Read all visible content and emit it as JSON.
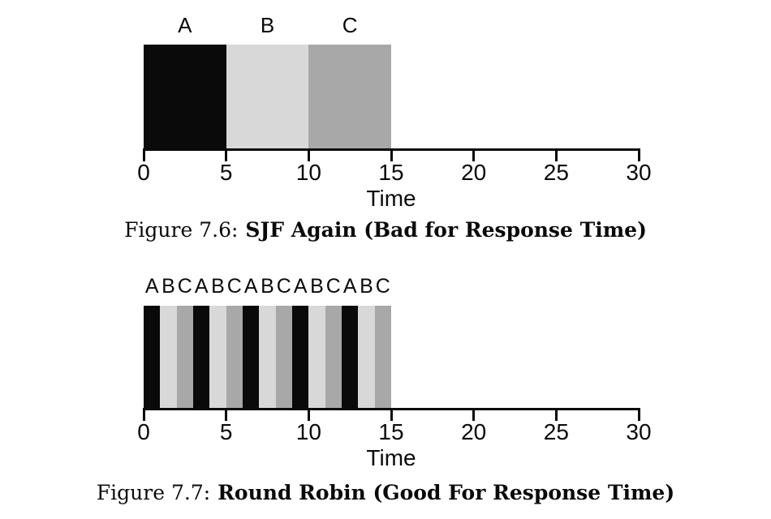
{
  "page": {
    "background": "#ffffff"
  },
  "job_colors": {
    "A": "#0a0a0a",
    "B": "#d8d8d8",
    "C": "#a8a8a8"
  },
  "axis_color": "#0a0a0a",
  "figures": [
    {
      "id": "figure-7-6",
      "job_labels": [
        {
          "text": "A",
          "center_time": 2.5
        },
        {
          "text": "B",
          "center_time": 7.5
        },
        {
          "text": "C",
          "center_time": 12.5
        }
      ],
      "segments": [
        {
          "job": "A",
          "start": 0,
          "end": 5
        },
        {
          "job": "B",
          "start": 5,
          "end": 10
        },
        {
          "job": "C",
          "start": 10,
          "end": 15
        }
      ],
      "axis": {
        "min": 0,
        "max": 30,
        "ticks": [
          0,
          5,
          10,
          15,
          20,
          25,
          30
        ],
        "label": "Time"
      },
      "caption": {
        "prefix": "Figure 7.6:",
        "title": "SJF Again (Bad for Response Time)"
      }
    },
    {
      "id": "figure-7-7",
      "job_labels": [
        {
          "text": "A",
          "center_time": 0.5
        },
        {
          "text": "B",
          "center_time": 1.5
        },
        {
          "text": "C",
          "center_time": 2.5
        },
        {
          "text": "A",
          "center_time": 3.5
        },
        {
          "text": "B",
          "center_time": 4.5
        },
        {
          "text": "C",
          "center_time": 5.5
        },
        {
          "text": "A",
          "center_time": 6.5
        },
        {
          "text": "B",
          "center_time": 7.5
        },
        {
          "text": "C",
          "center_time": 8.5
        },
        {
          "text": "A",
          "center_time": 9.5
        },
        {
          "text": "B",
          "center_time": 10.5
        },
        {
          "text": "C",
          "center_time": 11.5
        },
        {
          "text": "A",
          "center_time": 12.5
        },
        {
          "text": "B",
          "center_time": 13.5
        },
        {
          "text": "C",
          "center_time": 14.5
        }
      ],
      "segments": [
        {
          "job": "A",
          "start": 0,
          "end": 1
        },
        {
          "job": "B",
          "start": 1,
          "end": 2
        },
        {
          "job": "C",
          "start": 2,
          "end": 3
        },
        {
          "job": "A",
          "start": 3,
          "end": 4
        },
        {
          "job": "B",
          "start": 4,
          "end": 5
        },
        {
          "job": "C",
          "start": 5,
          "end": 6
        },
        {
          "job": "A",
          "start": 6,
          "end": 7
        },
        {
          "job": "B",
          "start": 7,
          "end": 8
        },
        {
          "job": "C",
          "start": 8,
          "end": 9
        },
        {
          "job": "A",
          "start": 9,
          "end": 10
        },
        {
          "job": "B",
          "start": 10,
          "end": 11
        },
        {
          "job": "C",
          "start": 11,
          "end": 12
        },
        {
          "job": "A",
          "start": 12,
          "end": 13
        },
        {
          "job": "B",
          "start": 13,
          "end": 14
        },
        {
          "job": "C",
          "start": 14,
          "end": 15
        }
      ],
      "axis": {
        "min": 0,
        "max": 30,
        "ticks": [
          0,
          5,
          10,
          15,
          20,
          25,
          30
        ],
        "label": "Time"
      },
      "caption": {
        "prefix": "Figure 7.7:",
        "title": "Round Robin (Good For Response Time)"
      }
    }
  ],
  "chart_data": [
    {
      "type": "bar",
      "variant": "gantt-timeline",
      "title": "Figure 7.6: SJF Again (Bad for Response Time)",
      "xlabel": "Time",
      "xlim": [
        0,
        30
      ],
      "xticks": [
        0,
        5,
        10,
        15,
        20,
        25,
        30
      ],
      "grid": false,
      "legend": "labels above bars (A, B, C)",
      "series": [
        {
          "name": "A",
          "color": "#0a0a0a",
          "intervals": [
            [
              0,
              5
            ]
          ]
        },
        {
          "name": "B",
          "color": "#d8d8d8",
          "intervals": [
            [
              5,
              10
            ]
          ]
        },
        {
          "name": "C",
          "color": "#a8a8a8",
          "intervals": [
            [
              10,
              15
            ]
          ]
        }
      ]
    },
    {
      "type": "bar",
      "variant": "gantt-timeline",
      "title": "Figure 7.7: Round Robin (Good For Response Time)",
      "xlabel": "Time",
      "xlim": [
        0,
        30
      ],
      "xticks": [
        0,
        5,
        10,
        15,
        20,
        25,
        30
      ],
      "grid": false,
      "legend": "letter sequence above bar: ABCABCABCABCABC",
      "series": [
        {
          "name": "A",
          "color": "#0a0a0a",
          "intervals": [
            [
              0,
              1
            ],
            [
              3,
              4
            ],
            [
              6,
              7
            ],
            [
              9,
              10
            ],
            [
              12,
              13
            ]
          ]
        },
        {
          "name": "B",
          "color": "#d8d8d8",
          "intervals": [
            [
              1,
              2
            ],
            [
              4,
              5
            ],
            [
              7,
              8
            ],
            [
              10,
              11
            ],
            [
              13,
              14
            ]
          ]
        },
        {
          "name": "C",
          "color": "#a8a8a8",
          "intervals": [
            [
              2,
              3
            ],
            [
              5,
              6
            ],
            [
              8,
              9
            ],
            [
              11,
              12
            ],
            [
              14,
              15
            ]
          ]
        }
      ]
    }
  ]
}
